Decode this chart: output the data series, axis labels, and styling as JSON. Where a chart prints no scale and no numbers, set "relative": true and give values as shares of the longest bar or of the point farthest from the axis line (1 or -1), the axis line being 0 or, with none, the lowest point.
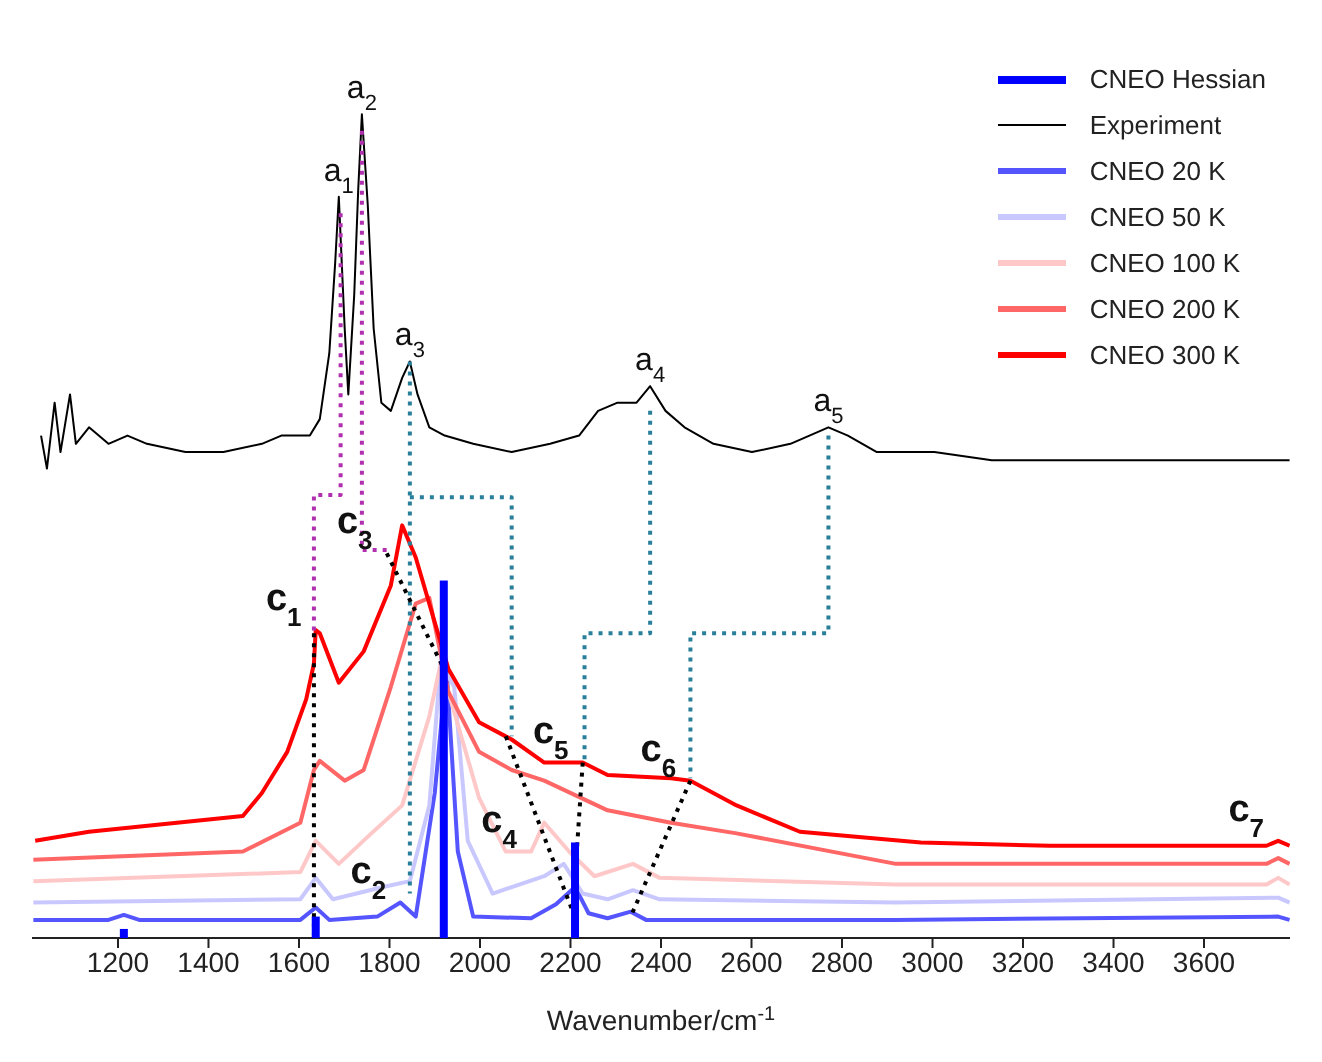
{
  "chart_data": {
    "type": "line",
    "relative": true,
    "xlabel": "Wavenumber/cm$^{-1}$",
    "xlim": [
      1010,
      3790
    ],
    "xticks": [
      1200,
      1400,
      1600,
      1800,
      2000,
      2200,
      2400,
      2600,
      2800,
      3000,
      3200,
      3400,
      3600
    ],
    "legend": "top right",
    "series": [
      {
        "name": "CNEO Hessian",
        "type": "bar",
        "color": "#0000ff",
        "x": [
          1213,
          1637,
          1920,
          2210
        ],
        "values": [
          0.011,
          0.026,
          0.434,
          0.116
        ]
      },
      {
        "name": "Experiment",
        "color": "#000000",
        "x": [
          1030,
          1043,
          1060,
          1073,
          1094,
          1107,
          1136,
          1179,
          1221,
          1264,
          1349,
          1433,
          1518,
          1561,
          1624,
          1646,
          1667,
          1680,
          1688,
          1701,
          1709,
          1722,
          1731,
          1739,
          1752,
          1765,
          1782,
          1803,
          1828,
          1845,
          1862,
          1888,
          1922,
          1985,
          2070,
          2155,
          2219,
          2261,
          2304,
          2346,
          2376,
          2410,
          2452,
          2516,
          2601,
          2686,
          2728,
          2770,
          2813,
          2877,
          3004,
          3131,
          3259,
          3386,
          3556,
          3725,
          3789
        ],
        "values": [
          0.61,
          0.57,
          0.65,
          0.59,
          0.66,
          0.6,
          0.62,
          0.6,
          0.61,
          0.6,
          0.59,
          0.59,
          0.6,
          0.61,
          0.61,
          0.63,
          0.71,
          0.82,
          0.9,
          0.74,
          0.66,
          0.78,
          0.91,
          1,
          0.89,
          0.74,
          0.65,
          0.64,
          0.68,
          0.7,
          0.66,
          0.62,
          0.61,
          0.6,
          0.59,
          0.6,
          0.61,
          0.64,
          0.65,
          0.65,
          0.67,
          0.64,
          0.62,
          0.6,
          0.59,
          0.6,
          0.61,
          0.62,
          0.61,
          0.59,
          0.59,
          0.58,
          0.58,
          0.58,
          0.58,
          0.58,
          0.58
        ]
      },
      {
        "name": "CNEO 20 K",
        "color": "#5555ff",
        "x": [
          1013,
          1179,
          1213,
          1247,
          1603,
          1637,
          1667,
          1773,
          1824,
          1858,
          1900,
          1926,
          1951,
          1985,
          2113,
          2168,
          2210,
          2240,
          2282,
          2333,
          2367,
          2919,
          3764,
          3789
        ],
        "values": [
          0.022,
          0.022,
          0.028,
          0.022,
          0.022,
          0.037,
          0.022,
          0.026,
          0.043,
          0.026,
          0.176,
          0.327,
          0.105,
          0.026,
          0.024,
          0.041,
          0.062,
          0.03,
          0.024,
          0.032,
          0.022,
          0.022,
          0.026,
          0.022
        ]
      },
      {
        "name": "CNEO 50 K",
        "color": "#c8c8ff",
        "x": [
          1013,
          1603,
          1637,
          1675,
          1786,
          1845,
          1888,
          1913,
          1943,
          1973,
          2028,
          2142,
          2185,
          2227,
          2282,
          2338,
          2397,
          2919,
          3764,
          3789
        ],
        "values": [
          0.043,
          0.047,
          0.073,
          0.047,
          0.062,
          0.069,
          0.161,
          0.333,
          0.305,
          0.118,
          0.054,
          0.075,
          0.09,
          0.054,
          0.047,
          0.058,
          0.047,
          0.043,
          0.049,
          0.043
        ]
      },
      {
        "name": "CNEO 100 K",
        "color": "#ffc8c8",
        "x": [
          1013,
          1603,
          1637,
          1688,
          1760,
          1828,
          1888,
          1913,
          1930,
          1998,
          2057,
          2113,
          2142,
          2197,
          2253,
          2338,
          2397,
          2919,
          3738,
          3764,
          3789
        ],
        "values": [
          0.069,
          0.08,
          0.118,
          0.09,
          0.127,
          0.161,
          0.269,
          0.333,
          0.299,
          0.17,
          0.105,
          0.105,
          0.14,
          0.105,
          0.075,
          0.09,
          0.073,
          0.065,
          0.065,
          0.073,
          0.065
        ]
      },
      {
        "name": "CNEO 200 K",
        "color": "#ff6666",
        "x": [
          1013,
          1476,
          1603,
          1633,
          1646,
          1701,
          1743,
          1803,
          1858,
          1888,
          1930,
          1998,
          2070,
          2142,
          2282,
          2422,
          2567,
          2919,
          3259,
          3738,
          3764,
          3789
        ],
        "values": [
          0.095,
          0.105,
          0.14,
          0.204,
          0.215,
          0.191,
          0.204,
          0.305,
          0.406,
          0.413,
          0.299,
          0.226,
          0.204,
          0.191,
          0.155,
          0.14,
          0.127,
          0.09,
          0.09,
          0.09,
          0.097,
          0.09
        ]
      },
      {
        "name": "CNEO 300 K",
        "color": "#ff0000",
        "x": [
          1017,
          1136,
          1476,
          1518,
          1574,
          1616,
          1633,
          1637,
          1646,
          1688,
          1743,
          1803,
          1828,
          1858,
          1930,
          1998,
          2070,
          2142,
          2227,
          2282,
          2422,
          2465,
          2567,
          2707,
          2974,
          3259,
          3738,
          3764,
          3789
        ],
        "values": [
          0.118,
          0.129,
          0.148,
          0.176,
          0.226,
          0.29,
          0.333,
          0.374,
          0.37,
          0.31,
          0.348,
          0.428,
          0.501,
          0.462,
          0.327,
          0.262,
          0.241,
          0.213,
          0.213,
          0.198,
          0.194,
          0.191,
          0.161,
          0.129,
          0.116,
          0.112,
          0.112,
          0.118,
          0.112
        ]
      },
      {
        "color": "#b030b0",
        "line_style": "dotted",
        "x": [
          1692,
          1692,
          1633,
          1633
        ],
        "values": [
          0.88,
          0.538,
          0.538,
          0.37
        ]
      },
      {
        "color": "#b030b0",
        "line_style": "dotted",
        "x": [
          1739,
          1739,
          1794
        ],
        "values": [
          0.98,
          0.471,
          0.471
        ]
      },
      {
        "color": "#2a7f9a",
        "line_style": "dotted",
        "x": [
          1845,
          1845
        ],
        "values": [
          0.7,
          0.054
        ]
      },
      {
        "color": "#2a7f9a",
        "line_style": "dotted",
        "x": [
          1845,
          2070,
          2070
        ],
        "values": [
          0.535,
          0.535,
          0.245
        ]
      },
      {
        "color": "#2a7f9a",
        "line_style": "dotted",
        "x": [
          2376,
          2376,
          2231,
          2231
        ],
        "values": [
          0.64,
          0.37,
          0.37,
          0.213
        ]
      },
      {
        "color": "#2a7f9a",
        "line_style": "dotted",
        "x": [
          2770,
          2770,
          2465,
          2465
        ],
        "values": [
          0.61,
          0.37,
          0.37,
          0.194
        ]
      },
      {
        "color": "#000000",
        "line_style": "dotted",
        "x": [
          1633,
          1633
        ],
        "values": [
          0.37,
          0.004
        ]
      },
      {
        "color": "#000000",
        "line_style": "dotted",
        "x": [
          1794,
          1920
        ],
        "values": [
          0.467,
          0.327
        ]
      },
      {
        "color": "#000000",
        "line_style": "dotted",
        "x": [
          2057,
          2205
        ],
        "values": [
          0.245,
          0.032
        ]
      },
      {
        "color": "#000000",
        "line_style": "dotted",
        "x": [
          2227,
          2205
        ],
        "values": [
          0.213,
          0.032
        ]
      },
      {
        "color": "#000000",
        "line_style": "dotted",
        "x": [
          2465,
          2333
        ],
        "values": [
          0.191,
          0.026
        ]
      }
    ],
    "annotations": [
      {
        "text": "a$_{1}$",
        "x": 1688,
        "y": 0.9
      },
      {
        "text": "a$_{2}$",
        "x": 1739,
        "y": 1
      },
      {
        "text": "a$_{3}$",
        "x": 1845,
        "y": 0.7
      },
      {
        "text": "a$_{4}$",
        "x": 2376,
        "y": 0.67
      },
      {
        "text": "a$_{5}$",
        "x": 2770,
        "y": 0.62
      },
      {
        "text": "c$_{1}$",
        "x": 1637,
        "y": 0.374
      },
      {
        "text": "c$_{2}$",
        "x": 1824,
        "y": 0.043
      },
      {
        "text": "c$_{3}$",
        "x": 1794,
        "y": 0.467
      },
      {
        "text": "c$_{4}$",
        "x": 2113,
        "y": 0.105
      },
      {
        "text": "c$_{5}$",
        "x": 2227,
        "y": 0.213
      },
      {
        "text": "c$_{6}$",
        "x": 2465,
        "y": 0.191
      },
      {
        "text": "c$_{7}$",
        "x": 3764,
        "y": 0.118
      }
    ]
  }
}
